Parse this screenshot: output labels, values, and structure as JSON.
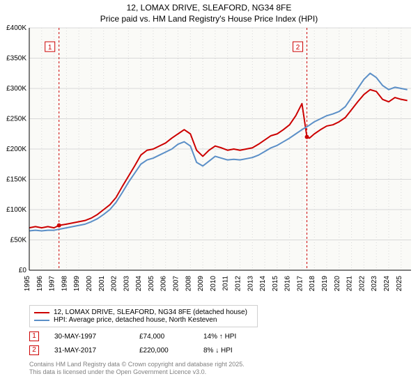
{
  "title_line1": "12, LOMAX DRIVE, SLEAFORD, NG34 8FE",
  "title_line2": "Price paid vs. HM Land Registry's House Price Index (HPI)",
  "chart": {
    "type": "line",
    "background_color": "#ffffff",
    "plot_bg_color": "#fafaf7",
    "gridline_color": "#d8d8d8",
    "axis_color": "#000000",
    "title_fontsize": 12,
    "tick_fontsize": 10,
    "x": {
      "min": 1995,
      "max": 2025.8,
      "tick_step": 1,
      "ticks": [
        1995,
        1996,
        1997,
        1998,
        1999,
        2000,
        2001,
        2002,
        2003,
        2004,
        2005,
        2006,
        2007,
        2008,
        2009,
        2010,
        2011,
        2012,
        2013,
        2014,
        2015,
        2016,
        2017,
        2018,
        2019,
        2020,
        2021,
        2022,
        2023,
        2024,
        2025
      ]
    },
    "y": {
      "min": 0,
      "max": 400000,
      "tick_step": 50000,
      "tick_labels": [
        "£0",
        "£50K",
        "£100K",
        "£150K",
        "£200K",
        "£250K",
        "£300K",
        "£350K",
        "£400K"
      ]
    },
    "series": [
      {
        "name": "12, LOMAX DRIVE, SLEAFORD, NG34 8FE (detached house)",
        "color": "#cc0000",
        "width": 2,
        "data": [
          [
            1995,
            70000
          ],
          [
            1995.5,
            72000
          ],
          [
            1996,
            70000
          ],
          [
            1996.5,
            72000
          ],
          [
            1997,
            70000
          ],
          [
            1997.4,
            74000
          ],
          [
            1998,
            76000
          ],
          [
            1998.5,
            78000
          ],
          [
            1999,
            80000
          ],
          [
            1999.5,
            82000
          ],
          [
            2000,
            86000
          ],
          [
            2000.5,
            92000
          ],
          [
            2001,
            100000
          ],
          [
            2001.5,
            108000
          ],
          [
            2002,
            120000
          ],
          [
            2002.5,
            138000
          ],
          [
            2003,
            155000
          ],
          [
            2003.5,
            172000
          ],
          [
            2004,
            190000
          ],
          [
            2004.5,
            198000
          ],
          [
            2005,
            200000
          ],
          [
            2005.5,
            205000
          ],
          [
            2006,
            210000
          ],
          [
            2006.5,
            218000
          ],
          [
            2007,
            225000
          ],
          [
            2007.5,
            232000
          ],
          [
            2008,
            225000
          ],
          [
            2008.5,
            198000
          ],
          [
            2009,
            188000
          ],
          [
            2009.5,
            198000
          ],
          [
            2010,
            205000
          ],
          [
            2010.5,
            202000
          ],
          [
            2011,
            198000
          ],
          [
            2011.5,
            200000
          ],
          [
            2012,
            198000
          ],
          [
            2012.5,
            200000
          ],
          [
            2013,
            202000
          ],
          [
            2013.5,
            208000
          ],
          [
            2014,
            215000
          ],
          [
            2014.5,
            222000
          ],
          [
            2015,
            225000
          ],
          [
            2015.5,
            232000
          ],
          [
            2016,
            240000
          ],
          [
            2016.5,
            255000
          ],
          [
            2017,
            275000
          ],
          [
            2017.4,
            220000
          ],
          [
            2017.6,
            218000
          ],
          [
            2018,
            225000
          ],
          [
            2018.5,
            232000
          ],
          [
            2019,
            238000
          ],
          [
            2019.5,
            240000
          ],
          [
            2020,
            245000
          ],
          [
            2020.5,
            252000
          ],
          [
            2021,
            265000
          ],
          [
            2021.5,
            278000
          ],
          [
            2022,
            290000
          ],
          [
            2022.5,
            298000
          ],
          [
            2023,
            295000
          ],
          [
            2023.5,
            282000
          ],
          [
            2024,
            278000
          ],
          [
            2024.5,
            285000
          ],
          [
            2025,
            282000
          ],
          [
            2025.5,
            280000
          ]
        ]
      },
      {
        "name": "HPI: Average price, detached house, North Kesteven",
        "color": "#5b8fc7",
        "width": 2,
        "data": [
          [
            1995,
            65000
          ],
          [
            1995.5,
            66000
          ],
          [
            1996,
            65000
          ],
          [
            1996.5,
            66000
          ],
          [
            1997,
            66000
          ],
          [
            1997.5,
            68000
          ],
          [
            1998,
            70000
          ],
          [
            1998.5,
            72000
          ],
          [
            1999,
            74000
          ],
          [
            1999.5,
            76000
          ],
          [
            2000,
            80000
          ],
          [
            2000.5,
            85000
          ],
          [
            2001,
            92000
          ],
          [
            2001.5,
            100000
          ],
          [
            2002,
            112000
          ],
          [
            2002.5,
            128000
          ],
          [
            2003,
            145000
          ],
          [
            2003.5,
            160000
          ],
          [
            2004,
            175000
          ],
          [
            2004.5,
            182000
          ],
          [
            2005,
            185000
          ],
          [
            2005.5,
            190000
          ],
          [
            2006,
            195000
          ],
          [
            2006.5,
            200000
          ],
          [
            2007,
            208000
          ],
          [
            2007.5,
            212000
          ],
          [
            2008,
            205000
          ],
          [
            2008.5,
            178000
          ],
          [
            2009,
            172000
          ],
          [
            2009.5,
            180000
          ],
          [
            2010,
            188000
          ],
          [
            2010.5,
            185000
          ],
          [
            2011,
            182000
          ],
          [
            2011.5,
            183000
          ],
          [
            2012,
            182000
          ],
          [
            2012.5,
            184000
          ],
          [
            2013,
            186000
          ],
          [
            2013.5,
            190000
          ],
          [
            2014,
            196000
          ],
          [
            2014.5,
            202000
          ],
          [
            2015,
            206000
          ],
          [
            2015.5,
            212000
          ],
          [
            2016,
            218000
          ],
          [
            2016.5,
            225000
          ],
          [
            2017,
            232000
          ],
          [
            2017.5,
            238000
          ],
          [
            2018,
            245000
          ],
          [
            2018.5,
            250000
          ],
          [
            2019,
            255000
          ],
          [
            2019.5,
            258000
          ],
          [
            2020,
            262000
          ],
          [
            2020.5,
            270000
          ],
          [
            2021,
            285000
          ],
          [
            2021.5,
            300000
          ],
          [
            2022,
            315000
          ],
          [
            2022.5,
            325000
          ],
          [
            2023,
            318000
          ],
          [
            2023.5,
            305000
          ],
          [
            2024,
            298000
          ],
          [
            2024.5,
            302000
          ],
          [
            2025,
            300000
          ],
          [
            2025.5,
            298000
          ]
        ]
      }
    ],
    "markers": [
      {
        "id": "1",
        "x": 1997.4,
        "y": 74000,
        "color": "#cc0000",
        "border": "#cc0000",
        "vline_color": "#cc0000"
      },
      {
        "id": "2",
        "x": 2017.4,
        "y": 220000,
        "color": "#cc0000",
        "border": "#cc0000",
        "vline_color": "#cc0000"
      }
    ]
  },
  "legend": {
    "border_color": "#d0d0d0",
    "font_size": 10,
    "items": [
      {
        "color": "#cc0000",
        "label": "12, LOMAX DRIVE, SLEAFORD, NG34 8FE (detached house)"
      },
      {
        "color": "#5b8fc7",
        "label": "HPI: Average price, detached house, North Kesteven"
      }
    ]
  },
  "marker_rows": [
    {
      "id": "1",
      "color": "#cc0000",
      "date": "30-MAY-1997",
      "price": "£74,000",
      "delta": "14% ↑ HPI"
    },
    {
      "id": "2",
      "color": "#cc0000",
      "date": "31-MAY-2017",
      "price": "£220,000",
      "delta": "8% ↓ HPI"
    }
  ],
  "footer": {
    "line1": "Contains HM Land Registry data © Crown copyright and database right 2025.",
    "line2": "This data is licensed under the Open Government Licence v3.0.",
    "color": "#808080",
    "font_size": 9
  }
}
